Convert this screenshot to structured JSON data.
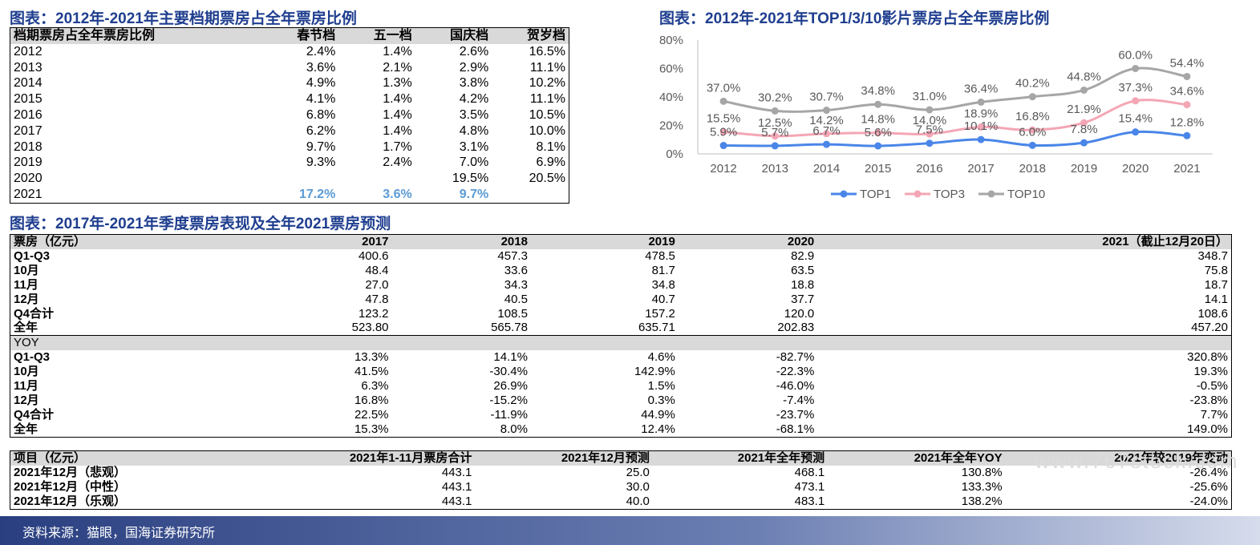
{
  "titles": {
    "t1": "图表：2012年-2021年主要档期票房占全年票房比例",
    "t2": "图表：2012年-2021年TOP1/3/10影片票房占全年票房比例",
    "t3": "图表：2017年-2021年季度票房表现及全年2021票房预测"
  },
  "table1": {
    "headers": [
      "档期票房占全年票房比例",
      "春节档",
      "五一档",
      "国庆档",
      "贺岁档"
    ],
    "rows": [
      [
        "2012",
        "2.4%",
        "1.4%",
        "2.6%",
        "16.5%"
      ],
      [
        "2013",
        "3.6%",
        "2.1%",
        "2.9%",
        "11.1%"
      ],
      [
        "2014",
        "4.9%",
        "1.3%",
        "3.8%",
        "10.2%"
      ],
      [
        "2015",
        "4.1%",
        "1.4%",
        "4.2%",
        "11.1%"
      ],
      [
        "2016",
        "6.8%",
        "1.4%",
        "3.5%",
        "10.5%"
      ],
      [
        "2017",
        "6.2%",
        "1.4%",
        "4.8%",
        "10.0%"
      ],
      [
        "2018",
        "9.7%",
        "1.7%",
        "3.1%",
        "8.1%"
      ],
      [
        "2019",
        "9.3%",
        "2.4%",
        "7.0%",
        "6.9%"
      ],
      [
        "2020",
        "",
        "",
        "19.5%",
        "20.5%"
      ],
      [
        "2021",
        "17.2%",
        "3.6%",
        "9.7%",
        ""
      ]
    ]
  },
  "table2": {
    "headers": [
      "票房（亿元）",
      "2017",
      "2018",
      "2019",
      "2020",
      "2021（截止12月20日）"
    ],
    "rows": [
      [
        "Q1-Q3",
        "400.6",
        "457.3",
        "478.5",
        "82.9",
        "348.7"
      ],
      [
        "10月",
        "48.4",
        "33.6",
        "81.7",
        "63.5",
        "75.8"
      ],
      [
        "11月",
        "27.0",
        "34.3",
        "34.8",
        "18.8",
        "18.7"
      ],
      [
        "12月",
        "47.8",
        "40.5",
        "40.7",
        "37.7",
        "14.1"
      ],
      [
        "Q4合计",
        "123.2",
        "108.5",
        "157.2",
        "120.0",
        "108.6"
      ],
      [
        "全年",
        "523.80",
        "565.78",
        "635.71",
        "202.83",
        "457.20"
      ]
    ],
    "yoy_label": "YOY",
    "yoy_rows": [
      [
        "Q1-Q3",
        "13.3%",
        "14.1%",
        "4.6%",
        "-82.7%",
        "320.8%"
      ],
      [
        "10月",
        "41.5%",
        "-30.4%",
        "142.9%",
        "-22.3%",
        "19.3%"
      ],
      [
        "11月",
        "6.3%",
        "26.9%",
        "1.5%",
        "-46.0%",
        "-0.5%"
      ],
      [
        "12月",
        "16.8%",
        "-15.2%",
        "0.3%",
        "-7.4%",
        "-23.8%"
      ],
      [
        "Q4合计",
        "22.5%",
        "-11.9%",
        "44.9%",
        "-23.7%",
        "7.7%"
      ],
      [
        "全年",
        "15.3%",
        "8.0%",
        "12.4%",
        "-68.1%",
        "149.0%"
      ]
    ]
  },
  "table3": {
    "headers": [
      "项目（亿元）",
      "2021年1-11月票房合计",
      "2021年12月预测",
      "2021年全年预测",
      "2021年全年YOY",
      "2021年较2019年变动"
    ],
    "rows": [
      [
        "2021年12月（悲观）",
        "443.1",
        "25.0",
        "468.1",
        "130.8%",
        "-26.4%"
      ],
      [
        "2021年12月（中性）",
        "443.1",
        "30.0",
        "473.1",
        "133.3%",
        "-25.6%"
      ],
      [
        "2021年12月（乐观）",
        "443.1",
        "40.0",
        "483.1",
        "138.2%",
        "-24.0%"
      ]
    ]
  },
  "footer": {
    "source": "资料来源：猫眼，国海证券研究所"
  },
  "watermark": "www.767stock.com",
  "chart_data": {
    "type": "line",
    "title": "图表：2012年-2021年TOP1/3/10影片票房占全年票房比例",
    "categories": [
      "2012",
      "2013",
      "2014",
      "2015",
      "2016",
      "2017",
      "2018",
      "2019",
      "2020",
      "2021"
    ],
    "series": [
      {
        "name": "TOP1",
        "color": "#4a86e8",
        "values": [
          5.9,
          5.7,
          6.7,
          5.6,
          7.5,
          10.1,
          6.0,
          7.8,
          15.4,
          12.8
        ]
      },
      {
        "name": "TOP3",
        "color": "#f4a6b5",
        "values": [
          15.5,
          12.5,
          14.2,
          14.8,
          14.0,
          18.9,
          16.8,
          21.9,
          37.3,
          34.6
        ]
      },
      {
        "name": "TOP10",
        "color": "#a6a6a6",
        "values": [
          37.0,
          30.2,
          30.7,
          34.8,
          31.0,
          36.4,
          40.2,
          44.8,
          60.0,
          54.4
        ]
      }
    ],
    "ylim": [
      0,
      80
    ],
    "yticks": [
      "0%",
      "20%",
      "40%",
      "60%",
      "80%"
    ],
    "grid": false,
    "legend": "bottom"
  }
}
